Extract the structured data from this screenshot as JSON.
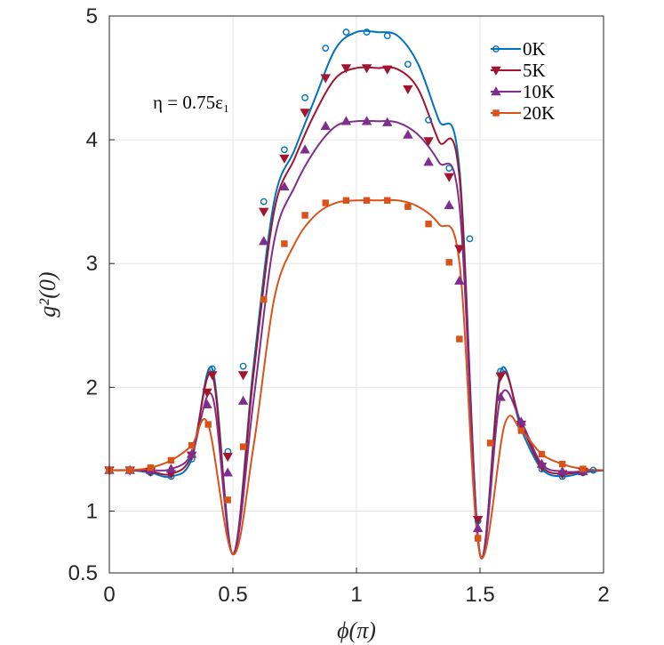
{
  "chart_data": {
    "type": "line",
    "title": "",
    "xlabel": "ϕ(π)",
    "ylabel": "g²(0)",
    "xlim": [
      0,
      2
    ],
    "ylim": [
      0.5,
      5
    ],
    "xticks": [
      0,
      0.5,
      1,
      1.5,
      2
    ],
    "xtick_labels": [
      "0",
      "0.5",
      "1",
      "1.5",
      "2"
    ],
    "yticks": [
      0.5,
      1,
      2,
      3,
      4,
      5
    ],
    "ytick_labels": [
      "0.5",
      "1",
      "2",
      "3",
      "4",
      "5"
    ],
    "grid": true,
    "legend_position": "top-right",
    "annotation": "η = 0.75ε₁",
    "series": [
      {
        "name": "0K",
        "color": "#0072BD",
        "marker": "circle",
        "x": [
          0,
          0.0833,
          0.1667,
          0.25,
          0.3333,
          0.4167,
          0.5,
          0.5833,
          0.6667,
          0.75,
          0.8333,
          0.9167,
          1.0,
          1.0833,
          1.1667,
          1.25,
          1.3333,
          1.4167,
          1.5,
          1.5833,
          1.6667,
          1.75,
          1.8333,
          1.9167,
          2.0
        ],
        "values": [
          1.33,
          1.33,
          1.31,
          1.28,
          1.42,
          2.15,
          0.65,
          2.17,
          3.5,
          3.92,
          4.34,
          4.74,
          4.87,
          4.87,
          4.84,
          4.61,
          4.16,
          3.77,
          0.65,
          2.13,
          1.66,
          1.34,
          1.28,
          1.31,
          1.33
        ],
        "marker_x": [
          0,
          0.0833,
          0.1667,
          0.25,
          0.3333,
          0.4167,
          0.48,
          0.5417,
          0.625,
          0.7083,
          0.7917,
          0.875,
          0.9583,
          1.0417,
          1.125,
          1.2083,
          1.2917,
          1.375,
          1.4583,
          1.4917,
          1.5833,
          1.6667,
          1.75,
          1.8333,
          1.9167,
          1.9583
        ],
        "marker_y": [
          1.33,
          1.33,
          1.31,
          1.28,
          1.42,
          2.15,
          1.48,
          2.17,
          3.5,
          3.92,
          4.34,
          4.74,
          4.87,
          4.87,
          4.84,
          4.61,
          4.16,
          3.77,
          3.2,
          0.92,
          2.13,
          1.66,
          1.34,
          1.28,
          1.31,
          1.33
        ]
      },
      {
        "name": "5K",
        "color": "#A2142F",
        "marker": "triangle-down",
        "x": [
          0,
          0.0833,
          0.1667,
          0.25,
          0.3333,
          0.4167,
          0.5,
          0.5833,
          0.6667,
          0.75,
          0.8333,
          0.9167,
          1.0,
          1.0833,
          1.1667,
          1.25,
          1.3333,
          1.4167,
          1.5,
          1.5833,
          1.6667,
          1.75,
          1.8333,
          1.9167,
          2.0
        ],
        "values": [
          1.33,
          1.33,
          1.32,
          1.3,
          1.45,
          2.1,
          0.65,
          2.1,
          3.42,
          3.85,
          4.22,
          4.5,
          4.58,
          4.58,
          4.57,
          4.41,
          3.99,
          3.7,
          0.65,
          2.09,
          1.7,
          1.36,
          1.3,
          1.32,
          1.33
        ],
        "marker_x": [
          0,
          0.0833,
          0.1667,
          0.25,
          0.3333,
          0.3958,
          0.4167,
          0.4792,
          0.5417,
          0.625,
          0.7083,
          0.7917,
          0.875,
          0.9583,
          1.0417,
          1.125,
          1.2083,
          1.2917,
          1.375,
          1.4167,
          1.4917,
          1.5833,
          1.6667,
          1.75,
          1.8333,
          1.9167
        ],
        "marker_y": [
          1.33,
          1.33,
          1.32,
          1.3,
          1.45,
          1.96,
          2.1,
          1.44,
          2.1,
          3.42,
          3.85,
          4.22,
          4.5,
          4.58,
          4.58,
          4.57,
          4.41,
          3.99,
          3.7,
          3.12,
          0.93,
          2.09,
          1.7,
          1.36,
          1.3,
          1.32
        ]
      },
      {
        "name": "10K",
        "color": "#7E2F8E",
        "marker": "triangle-up",
        "x": [
          0,
          0.0833,
          0.1667,
          0.25,
          0.3333,
          0.4167,
          0.5,
          0.5833,
          0.6667,
          0.75,
          0.8333,
          0.9167,
          1.0,
          1.0833,
          1.1667,
          1.25,
          1.3333,
          1.4167,
          1.5,
          1.5833,
          1.6667,
          1.75,
          1.8333,
          1.9167,
          2.0
        ],
        "values": [
          1.33,
          1.33,
          1.33,
          1.34,
          1.46,
          1.93,
          0.65,
          1.89,
          3.18,
          3.62,
          3.92,
          4.11,
          4.15,
          4.15,
          4.14,
          4.04,
          3.82,
          3.47,
          0.65,
          1.92,
          1.72,
          1.38,
          1.32,
          1.32,
          1.33
        ],
        "marker_x": [
          0,
          0.0833,
          0.1667,
          0.25,
          0.3333,
          0.3958,
          0.4792,
          0.5417,
          0.625,
          0.7083,
          0.7917,
          0.875,
          0.9583,
          1.0417,
          1.125,
          1.2083,
          1.2917,
          1.375,
          1.4167,
          1.4917,
          1.5833,
          1.6667,
          1.75,
          1.8333,
          1.9167
        ],
        "marker_y": [
          1.33,
          1.33,
          1.33,
          1.34,
          1.46,
          1.86,
          1.31,
          1.89,
          3.18,
          3.62,
          3.92,
          4.11,
          4.15,
          4.15,
          4.14,
          4.04,
          3.82,
          3.47,
          2.86,
          0.86,
          1.92,
          1.72,
          1.38,
          1.32,
          1.32
        ]
      },
      {
        "name": "20K",
        "color": "#D95319",
        "marker": "square",
        "x": [
          0,
          0.0833,
          0.1667,
          0.25,
          0.3333,
          0.4,
          0.5,
          0.5833,
          0.6667,
          0.75,
          0.8333,
          0.9167,
          1.0,
          1.0833,
          1.1667,
          1.25,
          1.3333,
          1.4167,
          1.5,
          1.6,
          1.6667,
          1.75,
          1.8333,
          1.9167,
          2.0
        ],
        "values": [
          1.33,
          1.33,
          1.35,
          1.41,
          1.53,
          1.7,
          0.65,
          1.52,
          2.71,
          3.16,
          3.39,
          3.49,
          3.51,
          3.51,
          3.51,
          3.46,
          3.32,
          3.01,
          0.65,
          1.7,
          1.65,
          1.46,
          1.38,
          1.34,
          1.33
        ],
        "marker_x": [
          0,
          0.0833,
          0.1667,
          0.25,
          0.3333,
          0.4,
          0.4792,
          0.5417,
          0.625,
          0.7083,
          0.7917,
          0.875,
          0.9583,
          1.0417,
          1.125,
          1.2083,
          1.2917,
          1.375,
          1.4167,
          1.4917,
          1.5417,
          1.6667,
          1.75,
          1.8333,
          1.9167
        ],
        "marker_y": [
          1.33,
          1.33,
          1.35,
          1.41,
          1.53,
          1.7,
          1.09,
          1.52,
          2.71,
          3.16,
          3.39,
          3.49,
          3.51,
          3.51,
          3.51,
          3.46,
          3.32,
          3.01,
          2.39,
          0.78,
          1.55,
          1.65,
          1.46,
          1.38,
          1.34
        ]
      }
    ]
  }
}
